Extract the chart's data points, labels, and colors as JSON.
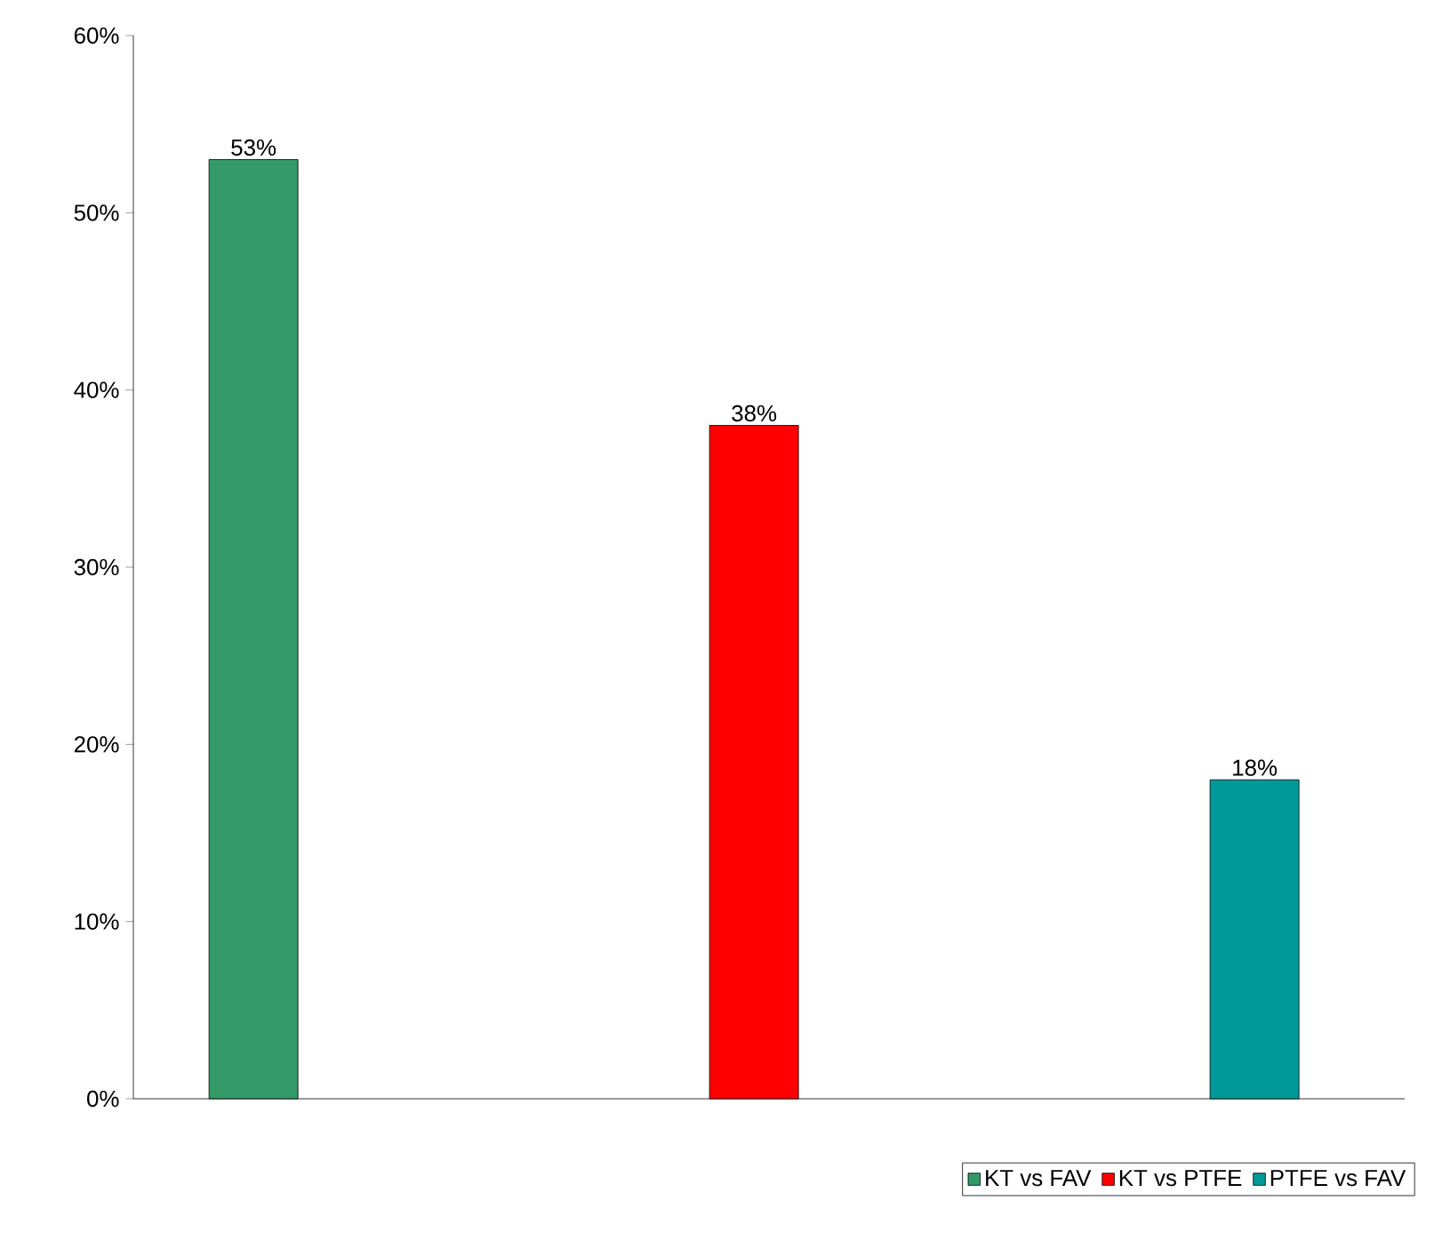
{
  "chart_data": {
    "type": "bar",
    "categories": [
      null,
      null,
      null
    ],
    "series": [
      {
        "name": "KT vs FAV",
        "color": "#339966",
        "values": [
          53,
          null,
          null
        ],
        "value_labels": [
          "53%",
          null,
          null
        ]
      },
      {
        "name": "KT vs PTFE",
        "color": "#ff0000",
        "values": [
          null,
          38,
          null
        ],
        "value_labels": [
          null,
          "38%",
          null
        ]
      },
      {
        "name": "PTFE vs FAV",
        "color": "#009999",
        "values": [
          null,
          null,
          18
        ],
        "value_labels": [
          null,
          null,
          "18%"
        ]
      }
    ],
    "ylim": [
      0,
      60
    ],
    "yticks": [
      {
        "value": 0,
        "label": "0%"
      },
      {
        "value": 10,
        "label": "10%"
      },
      {
        "value": 20,
        "label": "20%"
      },
      {
        "value": 30,
        "label": "30%"
      },
      {
        "value": 40,
        "label": "40%"
      },
      {
        "value": 50,
        "label": "50%"
      },
      {
        "value": 60,
        "label": "60%"
      }
    ],
    "grid": false,
    "legend": "bottom"
  }
}
